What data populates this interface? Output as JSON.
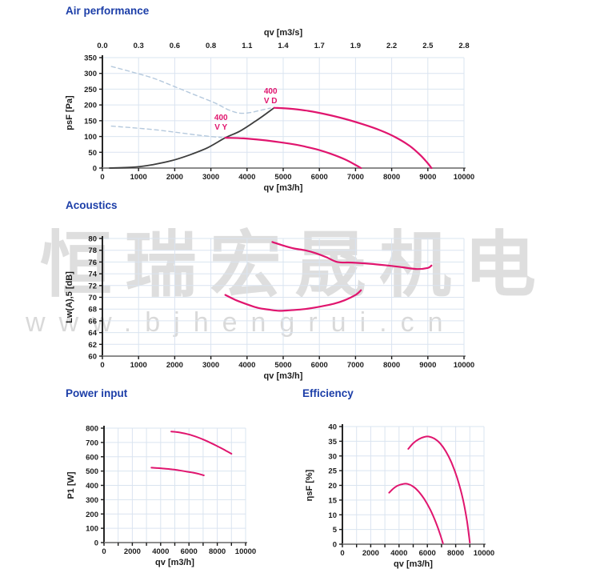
{
  "watermark": {
    "cjk_text": "恒瑞宏晟机电",
    "url_text": "www.bjhengrui.cn"
  },
  "colors": {
    "heading_blue": "#1c3ea8",
    "curve_pink": "#e0156e",
    "curve_black": "#3d3d3d",
    "curve_dashed_blue": "#b5c9dd",
    "grid": "#dae4f0",
    "axis_x_line": "#8c8c8c",
    "axis_y_line": "#262626",
    "tick_text": "#1c1c1c"
  },
  "chart_data": [
    {
      "id": "air-performance",
      "type": "line",
      "title": "Air performance",
      "xlabel": "qv [m3/h]",
      "ylabel": "psF [Pa]",
      "x_min": 0,
      "x_max": 10000,
      "x_step": 1000,
      "x_label_every": 1,
      "y_min": 0,
      "y_max": 350,
      "y_step": 50,
      "top_axis": {
        "title": "qv [m3/s]",
        "labels": [
          "0.0",
          "0.3",
          "0.6",
          "0.8",
          "1.1",
          "1.4",
          "1.7",
          "1.9",
          "2.2",
          "2.5",
          "2.8"
        ]
      },
      "series": [
        {
          "name": "guide-curve-upper-dashed",
          "color": "#b5c9dd",
          "dashed": true,
          "width": 1.4,
          "points": [
            [
              250,
              322
            ],
            [
              800,
              305
            ],
            [
              1400,
              285
            ],
            [
              2000,
              258
            ],
            [
              2600,
              230
            ],
            [
              3100,
              207
            ],
            [
              3500,
              184
            ],
            [
              3800,
              174
            ],
            [
              4100,
              176
            ],
            [
              4400,
              184
            ],
            [
              4650,
              190
            ]
          ]
        },
        {
          "name": "guide-curve-lower-dashed",
          "color": "#b5c9dd",
          "dashed": true,
          "width": 1.4,
          "points": [
            [
              250,
              133
            ],
            [
              800,
              128
            ],
            [
              1400,
              122
            ],
            [
              2000,
              114
            ],
            [
              2600,
              105
            ],
            [
              3000,
              100
            ],
            [
              3300,
              97
            ]
          ]
        },
        {
          "name": "fan-operating-curve",
          "color": "#3d3d3d",
          "dashed": false,
          "width": 1.8,
          "points": [
            [
              200,
              0
            ],
            [
              900,
              3
            ],
            [
              1400,
              11
            ],
            [
              1900,
              23
            ],
            [
              2400,
              41
            ],
            [
              2900,
              64
            ],
            [
              3400,
              96
            ],
            [
              3800,
              117
            ],
            [
              4200,
              146
            ],
            [
              4500,
              170
            ],
            [
              4750,
              191
            ]
          ]
        },
        {
          "name": "pressure-curve-400-VD",
          "color": "#e0156e",
          "dashed": false,
          "width": 2.2,
          "points": [
            [
              4750,
              191
            ],
            [
              5200,
              188
            ],
            [
              5700,
              181
            ],
            [
              6200,
              170
            ],
            [
              6700,
              156
            ],
            [
              7200,
              139
            ],
            [
              7700,
              119
            ],
            [
              8100,
              98
            ],
            [
              8500,
              70
            ],
            [
              8800,
              40
            ],
            [
              9000,
              15
            ],
            [
              9100,
              0
            ]
          ]
        },
        {
          "name": "pressure-curve-400-VY",
          "color": "#e0156e",
          "dashed": false,
          "width": 2.2,
          "points": [
            [
              3400,
              96
            ],
            [
              3900,
              94
            ],
            [
              4400,
              89
            ],
            [
              4900,
              82
            ],
            [
              5400,
              73
            ],
            [
              5900,
              60
            ],
            [
              6300,
              46
            ],
            [
              6700,
              28
            ],
            [
              7000,
              10
            ],
            [
              7150,
              0
            ]
          ]
        }
      ],
      "annotations": [
        {
          "lines": [
            "400",
            "V D"
          ],
          "x": 4650,
          "y": 236,
          "color": "#e0156e"
        },
        {
          "lines": [
            "400",
            "V Y"
          ],
          "x": 3280,
          "y": 152,
          "color": "#e0156e"
        }
      ]
    },
    {
      "id": "acoustics",
      "type": "line",
      "title": "Acoustics",
      "xlabel": "qv [m3/h]",
      "ylabel": "Lw(A),5 [dB]",
      "x_min": 0,
      "x_max": 10000,
      "x_step": 1000,
      "x_label_every": 1,
      "y_min": 60,
      "y_max": 80,
      "y_step": 2,
      "series": [
        {
          "name": "noise-curve-400-VD",
          "color": "#e0156e",
          "dashed": false,
          "width": 2.2,
          "points": [
            [
              4700,
              79.4
            ],
            [
              5000,
              78.8
            ],
            [
              5300,
              78.3
            ],
            [
              5600,
              78.0
            ],
            [
              5900,
              77.5
            ],
            [
              6200,
              76.8
            ],
            [
              6500,
              76.0
            ],
            [
              6900,
              75.9
            ],
            [
              7400,
              75.7
            ],
            [
              7900,
              75.4
            ],
            [
              8300,
              75.1
            ],
            [
              8700,
              74.8
            ],
            [
              9000,
              75.0
            ],
            [
              9100,
              75.4
            ]
          ]
        },
        {
          "name": "noise-curve-400-VY",
          "color": "#e0156e",
          "dashed": false,
          "width": 2.2,
          "points": [
            [
              3400,
              70.4
            ],
            [
              3700,
              69.5
            ],
            [
              4000,
              68.8
            ],
            [
              4300,
              68.2
            ],
            [
              4600,
              67.9
            ],
            [
              4900,
              67.7
            ],
            [
              5200,
              67.8
            ],
            [
              5600,
              68.0
            ],
            [
              6000,
              68.4
            ],
            [
              6400,
              68.9
            ],
            [
              6700,
              69.5
            ],
            [
              7000,
              70.4
            ],
            [
              7150,
              71.2
            ]
          ]
        }
      ],
      "annotations": []
    },
    {
      "id": "power-input",
      "type": "line",
      "title": "Power input",
      "xlabel": "qv [m3/h]",
      "ylabel": "P1 [W]",
      "x_min": 0,
      "x_max": 10000,
      "x_step": 1000,
      "x_label_every": 2,
      "y_min": 0,
      "y_max": 800,
      "y_step": 100,
      "series": [
        {
          "name": "power-curve-400-VD",
          "color": "#e0156e",
          "dashed": false,
          "width": 2.0,
          "points": [
            [
              4750,
              776
            ],
            [
              5200,
              772
            ],
            [
              5700,
              763
            ],
            [
              6200,
              750
            ],
            [
              6700,
              733
            ],
            [
              7200,
              712
            ],
            [
              7700,
              689
            ],
            [
              8200,
              664
            ],
            [
              8600,
              643
            ],
            [
              9000,
              621
            ]
          ]
        },
        {
          "name": "power-curve-400-VY",
          "color": "#e0156e",
          "dashed": false,
          "width": 2.0,
          "points": [
            [
              3350,
              524
            ],
            [
              3800,
              521
            ],
            [
              4300,
              517
            ],
            [
              4800,
              512
            ],
            [
              5300,
              505
            ],
            [
              5800,
              497
            ],
            [
              6300,
              489
            ],
            [
              6700,
              480
            ],
            [
              7050,
              470
            ]
          ]
        }
      ],
      "annotations": []
    },
    {
      "id": "efficiency",
      "type": "line",
      "title": "Efficiency",
      "xlabel": "qv [m3/h]",
      "ylabel": "ηsF [%]",
      "x_min": 0,
      "x_max": 10000,
      "x_step": 1000,
      "x_label_every": 2,
      "y_min": 0,
      "y_max": 40,
      "y_step": 5,
      "series": [
        {
          "name": "efficiency-curve-400-VD",
          "color": "#e0156e",
          "dashed": false,
          "width": 2.0,
          "points": [
            [
              4650,
              32.4
            ],
            [
              5000,
              34.3
            ],
            [
              5400,
              35.7
            ],
            [
              5800,
              36.5
            ],
            [
              6100,
              36.6
            ],
            [
              6500,
              35.9
            ],
            [
              6900,
              34.3
            ],
            [
              7300,
              31.6
            ],
            [
              7700,
              27.8
            ],
            [
              8100,
              22.6
            ],
            [
              8500,
              15.6
            ],
            [
              8800,
              7.8
            ],
            [
              9000,
              0.5
            ]
          ]
        },
        {
          "name": "efficiency-curve-400-VY",
          "color": "#e0156e",
          "dashed": false,
          "width": 2.0,
          "points": [
            [
              3300,
              17.5
            ],
            [
              3600,
              18.9
            ],
            [
              3900,
              19.9
            ],
            [
              4300,
              20.5
            ],
            [
              4600,
              20.5
            ],
            [
              5000,
              19.6
            ],
            [
              5400,
              17.8
            ],
            [
              5800,
              15.2
            ],
            [
              6200,
              11.8
            ],
            [
              6600,
              7.4
            ],
            [
              6900,
              3.4
            ],
            [
              7100,
              0.3
            ]
          ]
        }
      ],
      "annotations": []
    }
  ]
}
